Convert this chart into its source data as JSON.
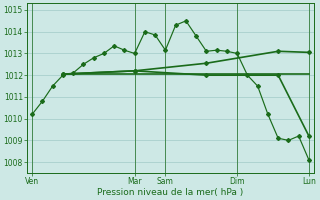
{
  "bg_color": "#cde8e5",
  "grid_color": "#a8d0cc",
  "line_color": "#1a6b1a",
  "marker_color": "#1a6b1a",
  "xlabel": "Pression niveau de la mer( hPa )",
  "ylim": [
    1007.5,
    1015.3
  ],
  "yticks": [
    1008,
    1009,
    1010,
    1011,
    1012,
    1013,
    1014,
    1015
  ],
  "day_labels": [
    "Ven",
    "Mar",
    "Sam",
    "Dim",
    "Lun"
  ],
  "day_positions": [
    0,
    10,
    13,
    20,
    27
  ],
  "xlim": [
    -0.5,
    27.5
  ],
  "series1_x": [
    0,
    1,
    2,
    3,
    4,
    5,
    6,
    7,
    8,
    9,
    10,
    11,
    12,
    13,
    14,
    15,
    16,
    17,
    18,
    19,
    20,
    21,
    22,
    23,
    24,
    25,
    26,
    27
  ],
  "series1_y": [
    1010.2,
    1010.8,
    1011.5,
    1012.0,
    1012.1,
    1012.5,
    1012.8,
    1013.0,
    1013.35,
    1013.15,
    1013.0,
    1014.0,
    1013.85,
    1013.15,
    1014.3,
    1014.5,
    1013.8,
    1013.1,
    1013.15,
    1013.1,
    1013.0,
    1012.0,
    1011.5,
    1010.2,
    1009.1,
    1009.0,
    1009.2,
    1008.1
  ],
  "series2_x": [
    3,
    10,
    17,
    24,
    27
  ],
  "series2_y": [
    1012.05,
    1012.2,
    1012.55,
    1013.1,
    1013.05
  ],
  "series3_x": [
    3,
    10,
    17,
    24,
    27
  ],
  "series3_y": [
    1012.05,
    1012.2,
    1012.0,
    1012.0,
    1009.2
  ],
  "series4_x": [
    3,
    27
  ],
  "series4_y": [
    1012.05,
    1012.05
  ]
}
